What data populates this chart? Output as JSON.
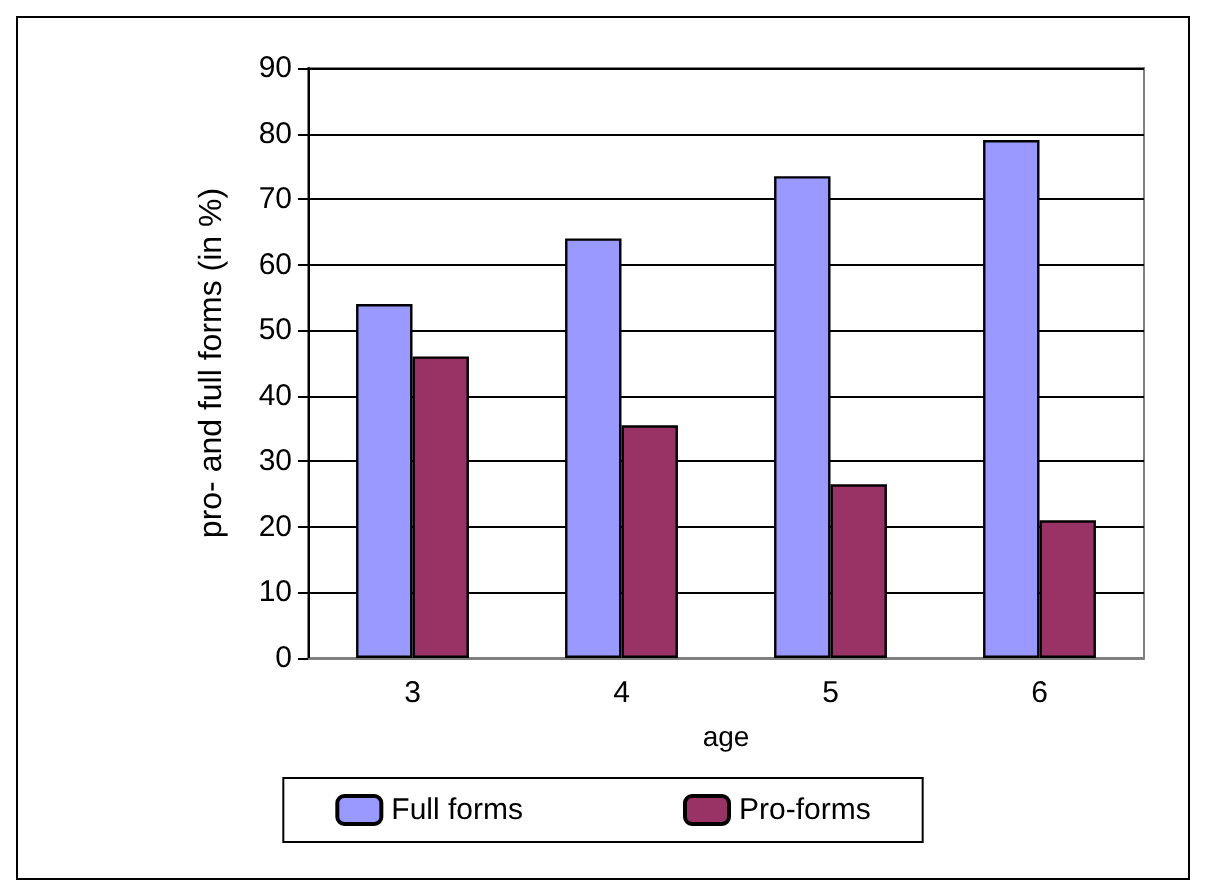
{
  "chart_data": {
    "type": "bar",
    "xlabel": "age",
    "ylabel": "pro- and full forms (in %)",
    "categories": [
      "3",
      "4",
      "5",
      "6"
    ],
    "series": [
      {
        "name": "Full forms",
        "color": "#9999ff",
        "values": [
          54,
          64,
          73.5,
          79
        ]
      },
      {
        "name": "Pro-forms",
        "color": "#993366",
        "values": [
          46,
          35.5,
          26.5,
          21
        ]
      }
    ],
    "ylim": [
      0,
      90
    ],
    "yticks": [
      0,
      10,
      20,
      30,
      40,
      50,
      60,
      70,
      80,
      90
    ],
    "grid": "y",
    "legend": "bottom"
  }
}
